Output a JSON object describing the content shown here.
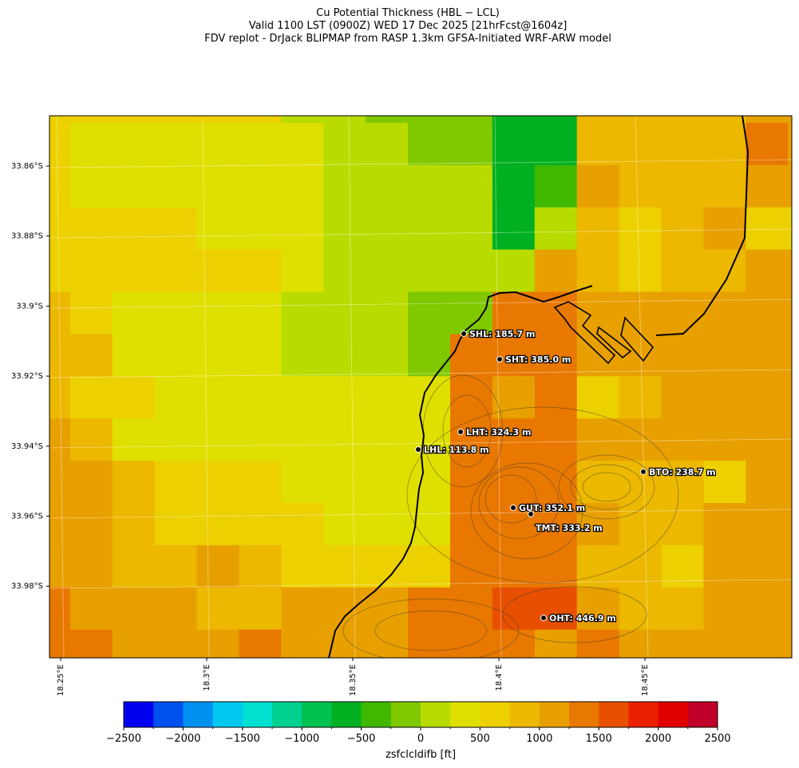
{
  "header": {
    "title_lines": [
      "Cu Potential Thickness (HBL − LCL)",
      "Valid 1100 LST (0900Z) WED 17 Dec 2025 [21hrFcst@1604z]",
      "FDV replot - DrJack BLIPMAP from RASP 1.3km GFSA-Initiated WRF-ARW model"
    ]
  },
  "map": {
    "lat_ticks": [
      {
        "value": -33.86,
        "label": "33.86°S"
      },
      {
        "value": -33.88,
        "label": "33.88°S"
      },
      {
        "value": -33.9,
        "label": "33.9°S"
      },
      {
        "value": -33.92,
        "label": "33.92°S"
      },
      {
        "value": -33.94,
        "label": "33.94°S"
      },
      {
        "value": -33.96,
        "label": "33.96°S"
      },
      {
        "value": -33.98,
        "label": "33.98°S"
      }
    ],
    "lon_ticks": [
      {
        "value": 18.25,
        "label": "18.25°E"
      },
      {
        "value": 18.3,
        "label": "18.3°E"
      },
      {
        "value": 18.35,
        "label": "18.35°E"
      },
      {
        "value": 18.4,
        "label": "18.4°E"
      },
      {
        "value": 18.45,
        "label": "18.45°E"
      }
    ],
    "stations": [
      "SHL: 185.7 m",
      "SHT: 385.0 m",
      "LHT: 324.3 m",
      "LHL: 113.8 m",
      "BTO: 238.7 m",
      "GUT: 352.1 m",
      "TMT: 333.2 m",
      "OHT: 446.9 m"
    ],
    "grid": [
      [
        625,
        625,
        625,
        625,
        625,
        625,
        125,
        125,
        -125,
        -125,
        -125,
        -625,
        -625,
        875,
        875,
        875,
        875,
        1125,
        1125
      ],
      [
        625,
        375,
        375,
        375,
        375,
        375,
        375,
        125,
        125,
        -125,
        -125,
        -625,
        -625,
        875,
        875,
        875,
        875,
        1375,
        1125
      ],
      [
        625,
        375,
        375,
        375,
        375,
        375,
        375,
        125,
        125,
        125,
        125,
        -625,
        -375,
        1125,
        875,
        875,
        875,
        1125,
        1125
      ],
      [
        625,
        625,
        625,
        625,
        375,
        375,
        375,
        125,
        125,
        125,
        125,
        -625,
        125,
        875,
        625,
        875,
        1125,
        625,
        625
      ],
      [
        625,
        625,
        625,
        625,
        625,
        625,
        375,
        125,
        125,
        125,
        125,
        125,
        1125,
        875,
        625,
        875,
        875,
        1125,
        1125
      ],
      [
        875,
        625,
        375,
        375,
        375,
        375,
        125,
        125,
        125,
        -125,
        -125,
        1375,
        1375,
        1125,
        1125,
        1125,
        1125,
        1125,
        1125
      ],
      [
        875,
        875,
        375,
        375,
        375,
        375,
        125,
        125,
        125,
        -125,
        1375,
        1375,
        1375,
        1125,
        1125,
        1125,
        1125,
        1125,
        1125
      ],
      [
        875,
        625,
        625,
        375,
        375,
        375,
        375,
        375,
        375,
        375,
        1375,
        1125,
        1375,
        625,
        875,
        1125,
        1125,
        1125,
        1125
      ],
      [
        1125,
        875,
        375,
        375,
        375,
        375,
        375,
        375,
        375,
        375,
        1375,
        1375,
        1375,
        1125,
        1125,
        1125,
        1125,
        1125,
        1125
      ],
      [
        1125,
        1125,
        875,
        625,
        625,
        625,
        375,
        375,
        375,
        375,
        1375,
        1375,
        1375,
        875,
        875,
        875,
        625,
        1125,
        1125
      ],
      [
        1125,
        1125,
        875,
        625,
        625,
        625,
        625,
        375,
        375,
        375,
        1375,
        1375,
        1375,
        1125,
        875,
        875,
        1125,
        1125,
        1125
      ],
      [
        1125,
        1125,
        875,
        875,
        1125,
        875,
        625,
        625,
        625,
        625,
        1375,
        1375,
        1375,
        875,
        875,
        625,
        1125,
        1125,
        1125
      ],
      [
        1375,
        1125,
        1125,
        1125,
        875,
        875,
        1125,
        1125,
        1125,
        1375,
        1375,
        1625,
        1625,
        1125,
        875,
        875,
        1125,
        1125,
        1125
      ],
      [
        1375,
        1375,
        1125,
        1125,
        1125,
        1375,
        1125,
        1125,
        1125,
        1375,
        1375,
        1375,
        1125,
        1375,
        1125,
        1125,
        1125,
        1125,
        1125
      ]
    ],
    "colorbar": {
      "levels": [
        -2500,
        -2250,
        -2000,
        -1750,
        -1500,
        -1250,
        -1000,
        -750,
        -500,
        -250,
        0,
        250,
        500,
        750,
        1000,
        1250,
        1500,
        1750,
        2000,
        2250,
        2500
      ],
      "colors": [
        "#0000f0",
        "#0050f0",
        "#0090f0",
        "#00c8f0",
        "#00e0d0",
        "#00d090",
        "#00c050",
        "#00b020",
        "#40b800",
        "#80c800",
        "#b8dc00",
        "#e0e000",
        "#ecd000",
        "#ecb800",
        "#e8a000",
        "#e87800",
        "#e85000",
        "#e82000",
        "#e00000",
        "#c00028"
      ],
      "ticks": [
        {
          "value": -2500,
          "label": "−2500"
        },
        {
          "value": -2000,
          "label": "−2000"
        },
        {
          "value": -1500,
          "label": "−1500"
        },
        {
          "value": -1000,
          "label": "−1000"
        },
        {
          "value": -500,
          "label": "−500"
        },
        0,
        500,
        1000,
        1500,
        2000,
        2500
      ],
      "label": "zsfclcldifb [ft]"
    }
  }
}
